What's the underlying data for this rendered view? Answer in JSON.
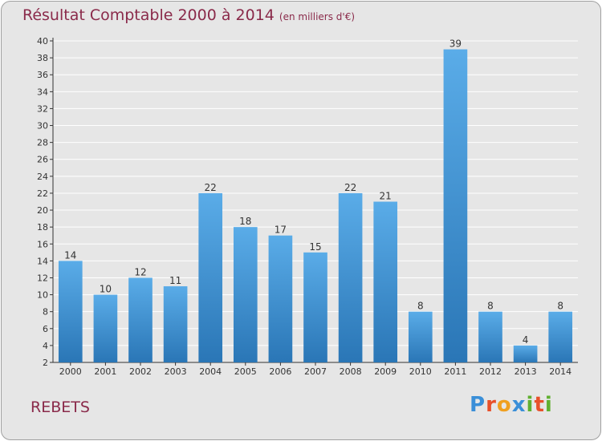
{
  "title": "Résultat Comptable 2000 à 2014",
  "subtitle": "(en milliers d'€)",
  "commune": "REBETS",
  "logo": {
    "letters": [
      "P",
      "r",
      "o",
      "x",
      "i",
      "t",
      "i"
    ],
    "colors": [
      "#3a8fd8",
      "#e8502a",
      "#f0a020",
      "#3a8fd8",
      "#60b030",
      "#e8502a",
      "#60b030"
    ]
  },
  "colors": {
    "bar_top": "#5aace8",
    "bar_bottom": "#2a76b6",
    "title": "#8a2a4a",
    "plot_bg": "#e6e6e6",
    "grid": "#ffffff"
  },
  "chart_data": {
    "type": "bar",
    "title": "Résultat Comptable 2000 à 2014",
    "subtitle": "(en milliers d'€)",
    "categories": [
      "2000",
      "2001",
      "2002",
      "2003",
      "2004",
      "2005",
      "2006",
      "2007",
      "2008",
      "2009",
      "2010",
      "2011",
      "2012",
      "2013",
      "2014"
    ],
    "values": [
      14,
      10,
      12,
      11,
      22,
      18,
      17,
      15,
      22,
      21,
      8,
      39,
      8,
      4,
      8
    ],
    "ylim": [
      2,
      40
    ],
    "yticks": [
      2,
      4,
      6,
      8,
      10,
      12,
      14,
      16,
      18,
      20,
      22,
      24,
      26,
      28,
      30,
      32,
      34,
      36,
      38,
      40
    ],
    "grid": true,
    "data_labels": true
  }
}
